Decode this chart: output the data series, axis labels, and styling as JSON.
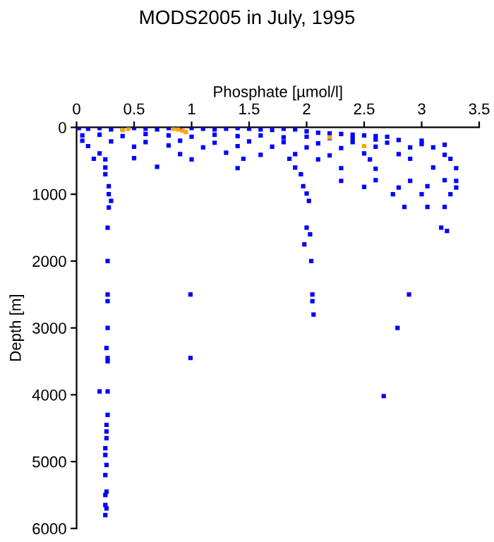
{
  "chart_data": {
    "type": "scatter",
    "title": "MODS2005 in July, 1995",
    "xlabel": "Phosphate [µmol/l]",
    "ylabel": "Depth [m]",
    "xlim": [
      0,
      3.5
    ],
    "xticks": [
      0,
      0.5,
      1,
      1.5,
      2,
      2.5,
      3,
      3.5
    ],
    "ylim": [
      6000,
      0
    ],
    "yticks": [
      0,
      1000,
      2000,
      3000,
      4000,
      5000,
      6000
    ],
    "grid": false,
    "legend": false,
    "marker": "square",
    "series": [
      {
        "color": "#0000ff",
        "x": [
          0.02,
          0.1,
          0.2,
          0.3,
          0.4,
          0.5,
          0.6,
          0.7,
          0.8,
          0.9,
          1.0,
          1.1,
          1.2,
          1.3,
          1.4,
          1.5,
          1.6,
          1.7,
          1.8,
          1.9,
          2.0,
          2.1,
          2.2,
          2.3,
          2.4,
          2.5,
          2.6,
          2.7,
          0.05,
          0.2,
          0.4,
          0.6,
          0.8,
          1.0,
          1.2,
          1.4,
          1.6,
          1.8,
          2.0,
          2.2,
          2.4,
          2.6,
          2.8,
          3.0,
          0.05,
          0.3,
          0.6,
          0.9,
          1.2,
          1.5,
          1.8,
          2.1,
          2.4,
          2.7,
          3.0,
          3.2,
          0.1,
          0.5,
          0.8,
          1.1,
          1.4,
          1.7,
          2.0,
          2.3,
          2.6,
          2.9,
          3.1,
          0.2,
          0.9,
          1.3,
          1.6,
          1.9,
          2.2,
          2.5,
          2.8,
          3.2,
          0.15,
          0.25,
          0.5,
          1.0,
          1.45,
          1.85,
          2.1,
          2.55,
          2.9,
          3.25,
          0.25,
          0.7,
          1.4,
          1.9,
          2.3,
          2.6,
          3.1,
          3.3,
          0.25,
          1.95,
          2.3,
          2.6,
          2.9,
          3.2,
          3.3,
          0.28,
          1.97,
          2.5,
          2.8,
          3.05,
          3.3,
          0.28,
          2.0,
          2.75,
          3.0,
          3.25,
          0.3,
          2.02,
          2.85,
          3.05,
          3.2,
          0.28,
          2.0,
          3.17,
          3.22,
          0.27,
          2.03,
          1.98,
          2.04,
          0.27,
          0.27,
          2.05,
          0.99,
          2.89,
          0.27,
          2.05,
          2.06,
          0.27,
          2.79,
          0.26,
          0.27,
          0.99,
          0.27,
          0.2,
          0.27,
          2.67,
          0.27,
          0.26,
          0.26,
          0.26,
          0.25,
          0.25,
          0.26,
          0.25,
          0.26,
          0.25,
          0.25,
          0.26,
          0.25
        ],
        "values": [
          10,
          20,
          10,
          30,
          20,
          10,
          20,
          30,
          10,
          20,
          10,
          20,
          30,
          20,
          10,
          20,
          30,
          40,
          20,
          30,
          60,
          80,
          90,
          100,
          110,
          120,
          130,
          140,
          120,
          110,
          130,
          100,
          120,
          140,
          110,
          130,
          120,
          150,
          140,
          160,
          170,
          180,
          190,
          200,
          200,
          210,
          220,
          200,
          230,
          210,
          220,
          240,
          220,
          230,
          250,
          260,
          280,
          290,
          270,
          300,
          280,
          290,
          300,
          310,
          290,
          300,
          300,
          390,
          400,
          380,
          410,
          400,
          420,
          390,
          400,
          410,
          470,
          480,
          460,
          480,
          470,
          470,
          480,
          480,
          470,
          470,
          600,
          590,
          610,
          600,
          610,
          620,
          600,
          610,
          700,
          700,
          800,
          790,
          800,
          790,
          800,
          880,
          880,
          890,
          900,
          880,
          900,
          1000,
          990,
          1000,
          1000,
          1000,
          1100,
          1100,
          1190,
          1190,
          1190,
          1200,
          1500,
          1500,
          1550,
          1500,
          1600,
          1750,
          2000,
          2000,
          2500,
          2500,
          2500,
          2500,
          2600,
          2600,
          2800,
          3000,
          3000,
          3300,
          3450,
          3450,
          3500,
          3950,
          3950,
          4020,
          4300,
          4450,
          4550,
          4650,
          4800,
          4900,
          5050,
          5200,
          5450,
          5500,
          5650,
          5700,
          5800
        ]
      },
      {
        "color": "#ffa500",
        "x": [
          0.4,
          0.45,
          0.84,
          0.88,
          0.92,
          0.95,
          2.2,
          2.5
        ],
        "values": [
          40,
          20,
          20,
          30,
          50,
          70,
          150,
          280
        ]
      }
    ]
  }
}
